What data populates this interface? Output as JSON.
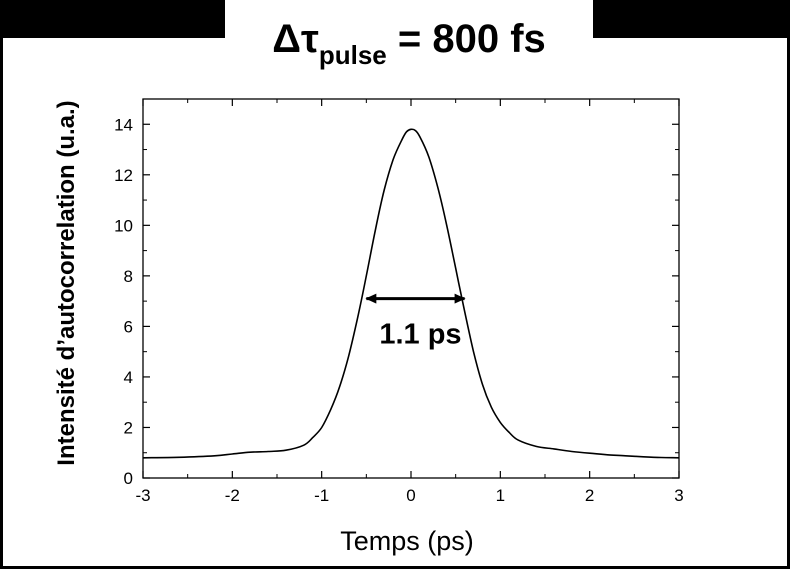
{
  "title": {
    "main": "Δτ",
    "subscript": "pulse",
    "value": " = 800 fs"
  },
  "chart_data": {
    "type": "line",
    "xlabel": "Temps (ps)",
    "ylabel": "Intensité d’autocorrelation (u.a.)",
    "xlim": [
      -3,
      3
    ],
    "ylim": [
      0,
      15
    ],
    "xticks": [
      -3,
      -2,
      -1,
      0,
      1,
      2,
      3
    ],
    "yticks": [
      0,
      2,
      4,
      6,
      8,
      10,
      12,
      14
    ],
    "grid": false,
    "series": [
      {
        "color": "#000000",
        "x": [
          -3.0,
          -2.6,
          -2.2,
          -2.0,
          -1.8,
          -1.6,
          -1.4,
          -1.2,
          -1.1,
          -1.0,
          -0.9,
          -0.8,
          -0.7,
          -0.6,
          -0.5,
          -0.4,
          -0.3,
          -0.2,
          -0.1,
          -0.05,
          0.0,
          0.05,
          0.1,
          0.2,
          0.3,
          0.4,
          0.5,
          0.6,
          0.7,
          0.8,
          0.9,
          1.0,
          1.1,
          1.2,
          1.4,
          1.6,
          1.8,
          2.0,
          2.2,
          2.4,
          2.6,
          2.8,
          3.0
        ],
        "y": [
          0.8,
          0.82,
          0.88,
          0.95,
          1.02,
          1.05,
          1.1,
          1.3,
          1.6,
          2.0,
          2.7,
          3.6,
          4.8,
          6.3,
          8.0,
          9.8,
          11.4,
          12.6,
          13.4,
          13.7,
          13.8,
          13.75,
          13.5,
          12.7,
          11.5,
          10.0,
          8.3,
          6.6,
          5.0,
          3.7,
          2.8,
          2.2,
          1.8,
          1.5,
          1.25,
          1.15,
          1.05,
          0.98,
          0.92,
          0.88,
          0.84,
          0.81,
          0.8
        ]
      }
    ],
    "annotations": [
      {
        "text": "1.1 ps",
        "x_start": -0.5,
        "x_end": 0.6,
        "y": 7.1
      }
    ]
  }
}
